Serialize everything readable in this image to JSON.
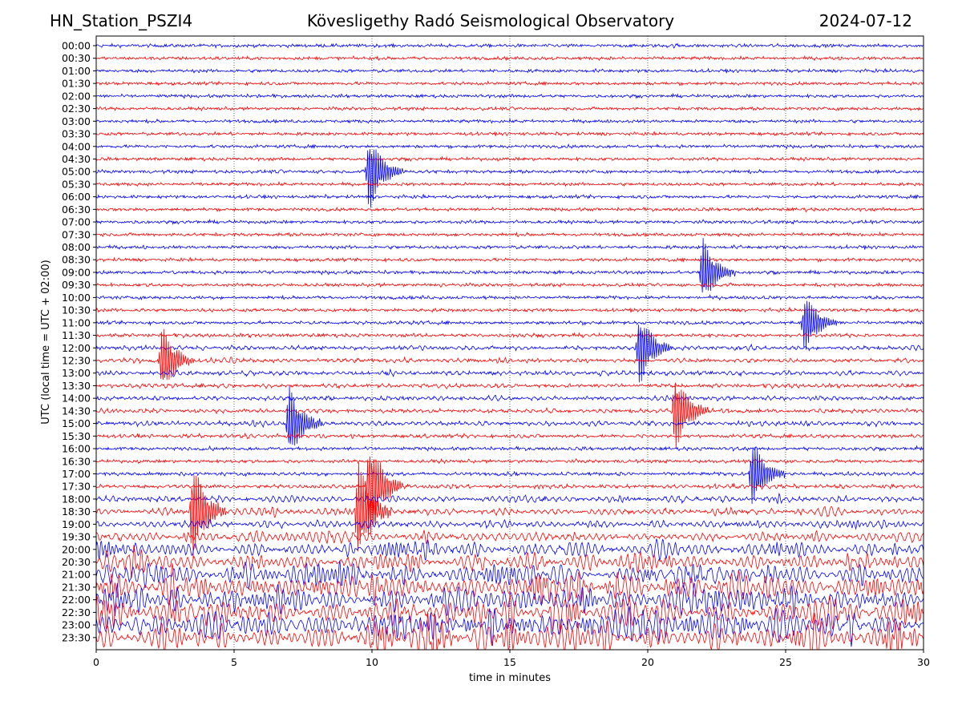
{
  "header": {
    "station": "HN_Station_PSZI4",
    "observatory": "Kövesligethy Radó Seismological Observatory",
    "date": "2024-07-12"
  },
  "chart_data": {
    "type": "seismogram-helicorder",
    "title": "Kövesligethy Radó Seismological Observatory",
    "xlabel": "time in minutes",
    "ylabel": "UTC (local time = UTC + 02:00)",
    "xlim": [
      0,
      30
    ],
    "x_ticks": [
      0,
      5,
      10,
      15,
      20,
      25,
      30
    ],
    "grid": "vertical dotted lines at 5, 10, 15, 20, 25 minutes",
    "colors": {
      "even_hour_rows": "#0000ff",
      "half_hour_rows": "#ff0000"
    },
    "rows": [
      "00:00",
      "00:30",
      "01:00",
      "01:30",
      "02:00",
      "02:30",
      "03:00",
      "03:30",
      "04:00",
      "04:30",
      "05:00",
      "05:30",
      "06:00",
      "06:30",
      "07:00",
      "07:30",
      "08:00",
      "08:30",
      "09:00",
      "09:30",
      "10:00",
      "10:30",
      "11:00",
      "11:30",
      "12:00",
      "12:30",
      "13:00",
      "13:30",
      "14:00",
      "14:30",
      "15:00",
      "15:30",
      "16:00",
      "16:30",
      "17:00",
      "17:30",
      "18:00",
      "18:30",
      "19:00",
      "19:30",
      "20:00",
      "20:30",
      "21:00",
      "21:30",
      "22:00",
      "22:30",
      "23:00",
      "23:30"
    ],
    "activity_level": [
      0.12,
      0.1,
      0.08,
      0.06,
      0.07,
      0.06,
      0.06,
      0.06,
      0.07,
      0.05,
      0.08,
      0.06,
      0.08,
      0.1,
      0.1,
      0.08,
      0.12,
      0.08,
      0.12,
      0.12,
      0.1,
      0.1,
      0.14,
      0.18,
      0.3,
      0.32,
      0.35,
      0.3,
      0.35,
      0.3,
      0.4,
      0.25,
      0.15,
      0.12,
      0.2,
      0.28,
      0.55,
      0.6,
      0.65,
      0.9,
      1.2,
      1.4,
      1.7,
      1.9,
      2.0,
      2.1,
      2.1,
      2.1
    ],
    "events": [
      {
        "row": "05:00",
        "minute": 9.9,
        "amplitude": 1.4
      },
      {
        "row": "09:00",
        "minute": 22.0,
        "amplitude": 1.2
      },
      {
        "row": "11:00",
        "minute": 25.7,
        "amplitude": 1.1
      },
      {
        "row": "12:00",
        "minute": 19.7,
        "amplitude": 1.3
      },
      {
        "row": "12:30",
        "minute": 2.4,
        "amplitude": 1.2
      },
      {
        "row": "14:30",
        "minute": 21.0,
        "amplitude": 1.4
      },
      {
        "row": "15:00",
        "minute": 7.0,
        "amplitude": 1.3
      },
      {
        "row": "17:00",
        "minute": 23.8,
        "amplitude": 1.2
      },
      {
        "row": "17:30",
        "minute": 9.9,
        "amplitude": 1.8
      },
      {
        "row": "18:30",
        "minute": 9.5,
        "amplitude": 1.8
      },
      {
        "row": "18:30",
        "minute": 3.5,
        "amplitude": 1.8
      }
    ]
  }
}
